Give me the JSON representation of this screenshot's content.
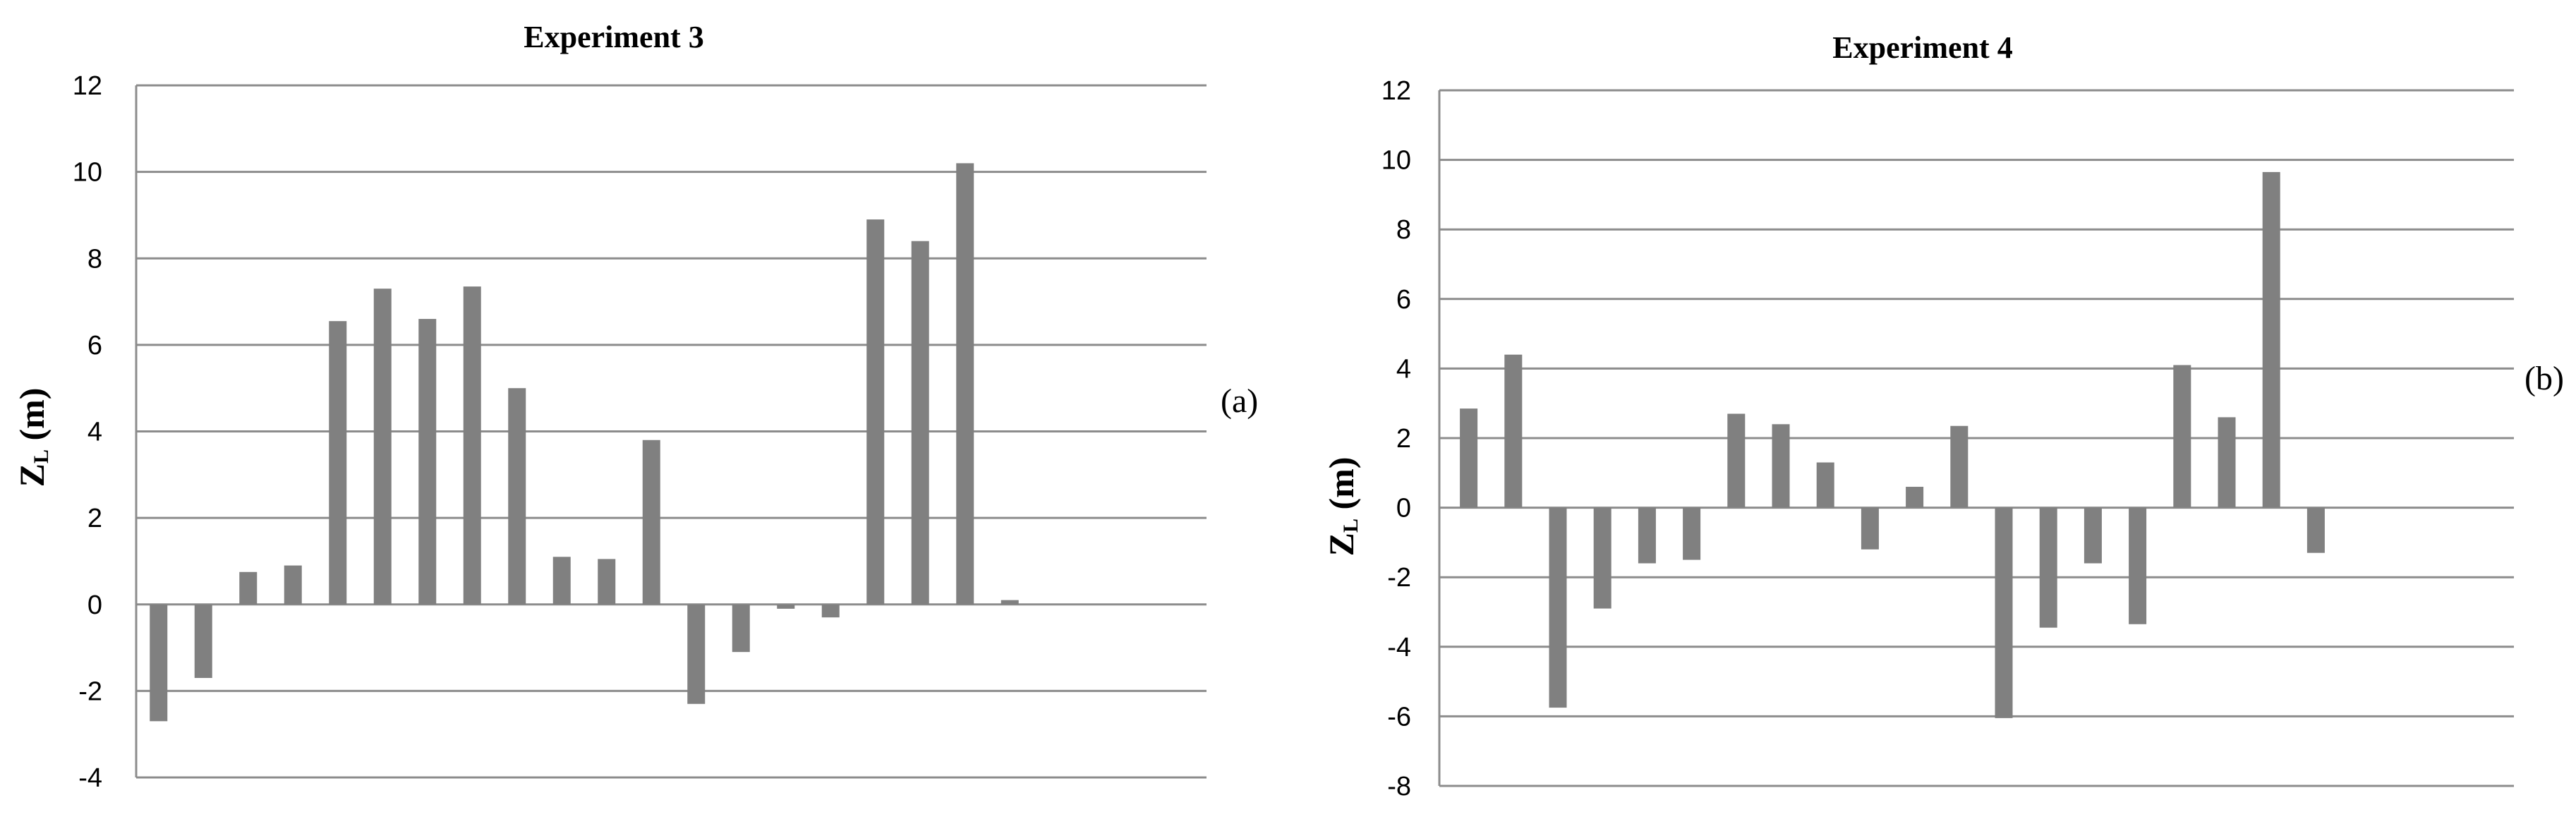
{
  "chart_data": [
    {
      "type": "bar",
      "title": "Experiment 3",
      "ylabel": "ZL (m)",
      "xlabel": "",
      "panel_label": "(a)",
      "ylim": [
        -4,
        12
      ],
      "yticks": [
        "12",
        "10",
        "8",
        "6",
        "4",
        "2",
        "0",
        "-2",
        "-4"
      ],
      "grid": true,
      "bar_color": "#808080",
      "values": [
        -2.7,
        -1.7,
        0.75,
        0.9,
        6.55,
        7.3,
        6.6,
        7.35,
        5.0,
        1.1,
        1.05,
        3.8,
        -2.3,
        -1.1,
        -0.1,
        -0.3,
        8.9,
        8.4,
        10.2,
        0.1
      ]
    },
    {
      "type": "bar",
      "title": "Experiment 4",
      "ylabel": "ZL (m)",
      "xlabel": "",
      "panel_label": "(b)",
      "ylim": [
        -8,
        12
      ],
      "yticks": [
        "12",
        "10",
        "8",
        "6",
        "4",
        "2",
        "0",
        "-2",
        "-4",
        "-6",
        "-8"
      ],
      "grid": true,
      "bar_color": "#808080",
      "values": [
        2.85,
        4.4,
        -5.75,
        -2.9,
        -1.6,
        -1.5,
        2.7,
        2.4,
        1.3,
        -1.2,
        0.6,
        2.35,
        -6.05,
        -3.45,
        -1.6,
        -3.35,
        4.1,
        2.6,
        9.65,
        -1.3
      ]
    }
  ]
}
